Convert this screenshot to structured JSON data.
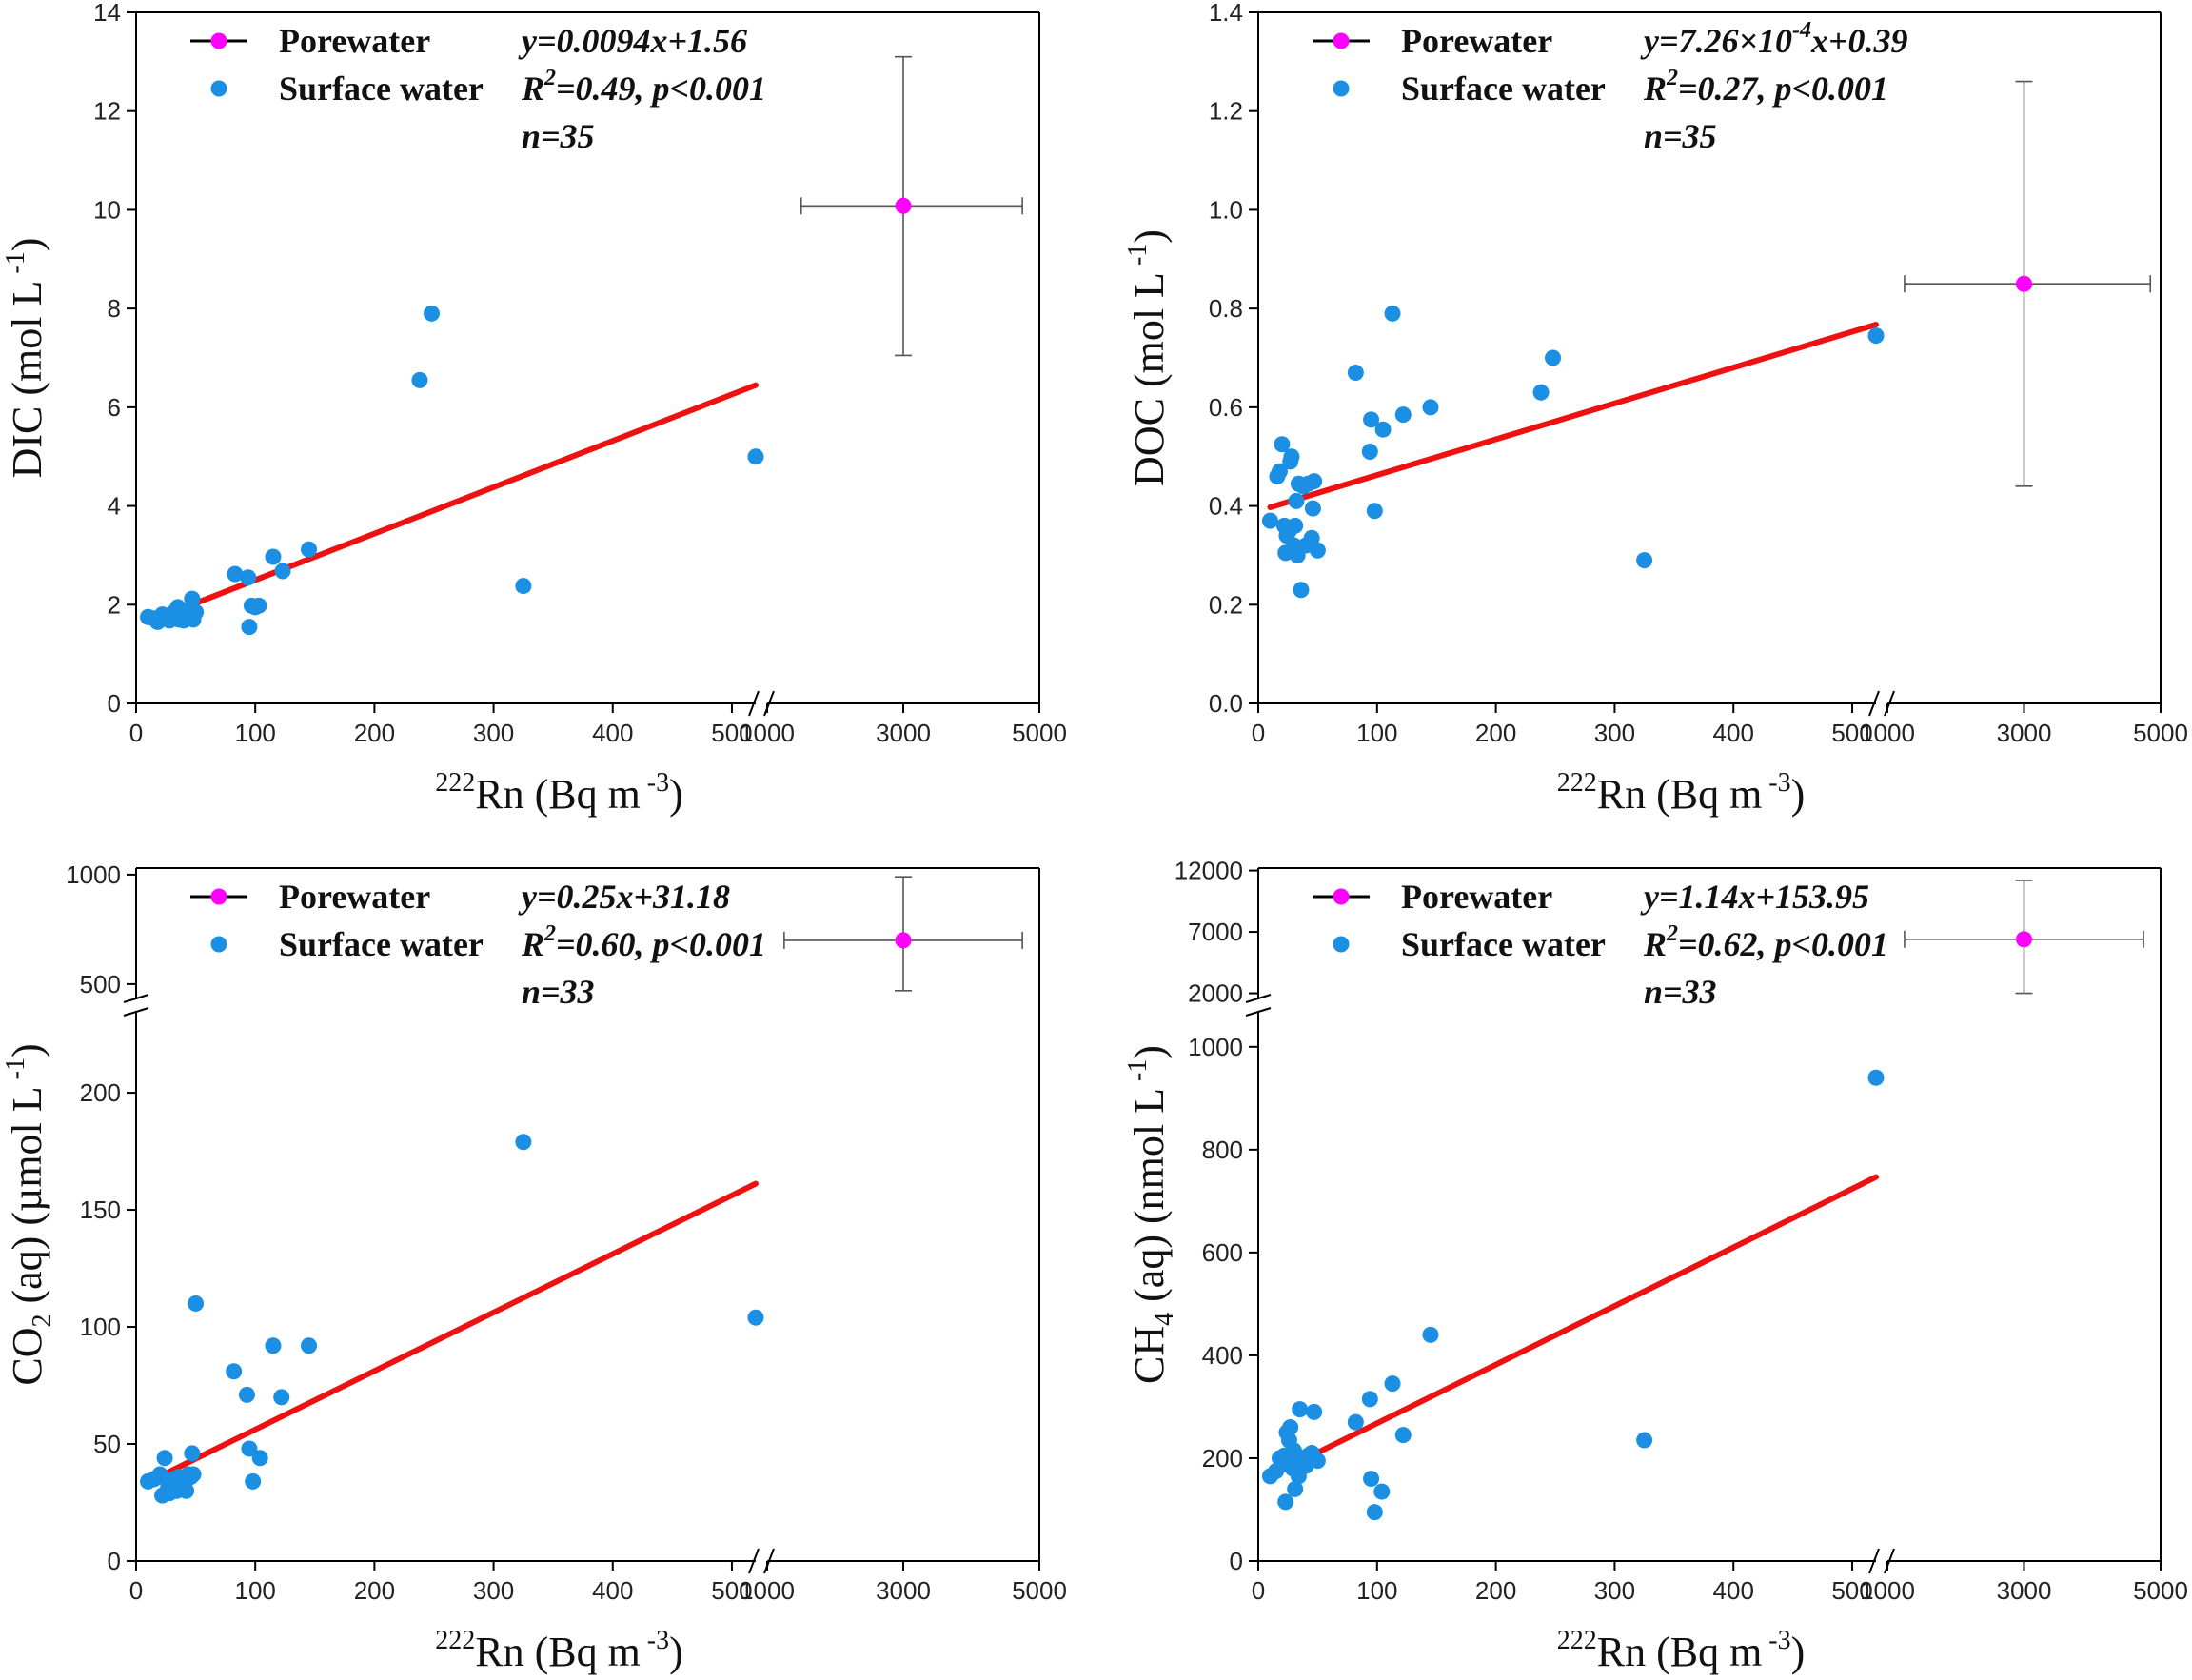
{
  "colors": {
    "surface": "#1a8fe3",
    "porewater": "#ff00ff",
    "fit": "#ee1111",
    "errorbar": "#555555"
  },
  "chart_data": [
    {
      "id": "dic",
      "type": "scatter",
      "ylabel": {
        "main": "DIC (mol L",
        "sup": "-1",
        "end": ")"
      },
      "xlabel": {
        "sup": "222",
        "main": "Rn (Bq m",
        "sup2": "-3",
        "end": ")"
      },
      "x_segments": [
        {
          "range": [
            0,
            520
          ],
          "ticks": [
            0,
            100,
            200,
            300,
            400,
            500
          ]
        },
        {
          "range": [
            1000,
            5000
          ],
          "ticks": [
            1000,
            3000,
            5000
          ]
        }
      ],
      "y_segments": [
        {
          "range": [
            0,
            14
          ],
          "ticks": [
            0,
            2,
            4,
            6,
            8,
            10,
            12,
            14
          ],
          "tick_labels": [
            "0",
            "2",
            "4",
            "6",
            "8",
            "10",
            "12",
            "14"
          ]
        }
      ],
      "legend": {
        "porewater": "Porewater",
        "surface": "Surface water"
      },
      "stats": {
        "eq": "y=0.0094x+1.56",
        "r2_pre": "R",
        "r2_sup": "2",
        "r2_post": "=0.49, p<0.001",
        "n": "n=35"
      },
      "fit": {
        "slope": 0.0094,
        "intercept": 1.56,
        "x_range": [
          10,
          520
        ]
      },
      "porewater": {
        "x": 3000,
        "y": 10.08,
        "x_err": [
          1500,
          4750
        ],
        "y_err": [
          7.05,
          13.1
        ]
      },
      "surface": [
        [
          10,
          1.75
        ],
        [
          15,
          1.72
        ],
        [
          18,
          1.65
        ],
        [
          20,
          1.7
        ],
        [
          22,
          1.8
        ],
        [
          25,
          1.75
        ],
        [
          28,
          1.68
        ],
        [
          30,
          1.72
        ],
        [
          32,
          1.85
        ],
        [
          35,
          1.95
        ],
        [
          36,
          1.7
        ],
        [
          38,
          1.78
        ],
        [
          40,
          1.68
        ],
        [
          42,
          1.82
        ],
        [
          44,
          1.75
        ],
        [
          45,
          1.9
        ],
        [
          47,
          2.12
        ],
        [
          48,
          1.7
        ],
        [
          50,
          1.85
        ],
        [
          83,
          2.62
        ],
        [
          94,
          2.55
        ],
        [
          95,
          1.55
        ],
        [
          97,
          1.98
        ],
        [
          100,
          1.95
        ],
        [
          103,
          1.98
        ],
        [
          115,
          2.97
        ],
        [
          123,
          2.68
        ],
        [
          145,
          3.12
        ],
        [
          238,
          6.55
        ],
        [
          248,
          7.9
        ],
        [
          325,
          2.38
        ],
        [
          520,
          5.0
        ],
        [
          26,
          1.78
        ],
        [
          34,
          1.74
        ],
        [
          39,
          1.86
        ]
      ]
    },
    {
      "id": "doc",
      "type": "scatter",
      "ylabel": {
        "main": "DOC (mol L",
        "sup": "-1",
        "end": ")"
      },
      "xlabel": {
        "sup": "222",
        "main": "Rn (Bq m",
        "sup2": "-3",
        "end": ")"
      },
      "x_segments": [
        {
          "range": [
            0,
            520
          ],
          "ticks": [
            0,
            100,
            200,
            300,
            400,
            500
          ]
        },
        {
          "range": [
            1000,
            5000
          ],
          "ticks": [
            1000,
            3000,
            5000
          ]
        }
      ],
      "y_segments": [
        {
          "range": [
            0,
            1.4
          ],
          "ticks": [
            0,
            0.2,
            0.4,
            0.6,
            0.8,
            1.0,
            1.2,
            1.4
          ],
          "tick_labels": [
            "0.0",
            "0.2",
            "0.4",
            "0.6",
            "0.8",
            "1.0",
            "1.2",
            "1.4"
          ]
        }
      ],
      "legend": {
        "porewater": "Porewater",
        "surface": "Surface water"
      },
      "stats": {
        "eq_pre": "y=7.26×10",
        "eq_sup": "-4",
        "eq_post": "x+0.39",
        "r2_pre": "R",
        "r2_sup": "2",
        "r2_post": "=0.27, p<0.001",
        "n": "n=35"
      },
      "fit": {
        "slope": 0.000726,
        "intercept": 0.39,
        "x_range": [
          10,
          520
        ]
      },
      "porewater": {
        "x": 3000,
        "y": 0.85,
        "x_err": [
          1250,
          4850
        ],
        "y_err": [
          0.44,
          1.26
        ]
      },
      "surface": [
        [
          10,
          0.37
        ],
        [
          16,
          0.46
        ],
        [
          18,
          0.47
        ],
        [
          20,
          0.525
        ],
        [
          22,
          0.36
        ],
        [
          23,
          0.305
        ],
        [
          24,
          0.34
        ],
        [
          26,
          0.35
        ],
        [
          27,
          0.49
        ],
        [
          28,
          0.5
        ],
        [
          30,
          0.32
        ],
        [
          31,
          0.36
        ],
        [
          32,
          0.41
        ],
        [
          33,
          0.3
        ],
        [
          34,
          0.445
        ],
        [
          36,
          0.23
        ],
        [
          38,
          0.44
        ],
        [
          40,
          0.32
        ],
        [
          42,
          0.445
        ],
        [
          45,
          0.335
        ],
        [
          46,
          0.395
        ],
        [
          47,
          0.45
        ],
        [
          50,
          0.31
        ],
        [
          82,
          0.67
        ],
        [
          94,
          0.51
        ],
        [
          95,
          0.575
        ],
        [
          98,
          0.39
        ],
        [
          105,
          0.555
        ],
        [
          113,
          0.79
        ],
        [
          122,
          0.585
        ],
        [
          145,
          0.6
        ],
        [
          238,
          0.63
        ],
        [
          248,
          0.7
        ],
        [
          325,
          0.29
        ],
        [
          520,
          0.745
        ]
      ]
    },
    {
      "id": "co2",
      "type": "scatter",
      "ylabel": {
        "main": "CO",
        "sub": "2",
        "mid": " (aq) (µmol L",
        "sup": "-1",
        "end": ")"
      },
      "xlabel": {
        "sup": "222",
        "main": "Rn (Bq m",
        "sup2": "-3",
        "end": ")"
      },
      "x_segments": [
        {
          "range": [
            0,
            520
          ],
          "ticks": [
            0,
            100,
            200,
            300,
            400,
            500
          ]
        },
        {
          "range": [
            1000,
            5000
          ],
          "ticks": [
            1000,
            3000,
            5000
          ]
        }
      ],
      "y_segments": [
        {
          "range": [
            0,
            235
          ],
          "ticks": [
            0,
            50,
            100,
            150,
            200
          ],
          "tick_labels": [
            "0",
            "50",
            "100",
            "150",
            "200"
          ]
        },
        {
          "range": [
            430,
            1030
          ],
          "ticks": [
            500,
            1000
          ],
          "tick_labels": [
            "500",
            "1000"
          ]
        }
      ],
      "legend": {
        "porewater": "Porewater",
        "surface": "Surface water"
      },
      "stats": {
        "eq": "y=0.25x+31.18",
        "r2_pre": "R",
        "r2_sup": "2",
        "r2_post": "=0.60, p<0.001",
        "n": "n=33"
      },
      "fit": {
        "slope": 0.25,
        "intercept": 31.18,
        "x_range": [
          10,
          520
        ]
      },
      "porewater": {
        "x": 3000,
        "y": 700,
        "x_err": [
          1250,
          4750
        ],
        "y_err": [
          470,
          990
        ]
      },
      "surface": [
        [
          10,
          34
        ],
        [
          15,
          35
        ],
        [
          20,
          37
        ],
        [
          22,
          28
        ],
        [
          24,
          44
        ],
        [
          26,
          30
        ],
        [
          28,
          29
        ],
        [
          30,
          32
        ],
        [
          32,
          35
        ],
        [
          34,
          30
        ],
        [
          36,
          36
        ],
        [
          38,
          31
        ],
        [
          40,
          33
        ],
        [
          42,
          30
        ],
        [
          44,
          37
        ],
        [
          46,
          36
        ],
        [
          47,
          46
        ],
        [
          48,
          37
        ],
        [
          50,
          110
        ],
        [
          82,
          81
        ],
        [
          93,
          71
        ],
        [
          95,
          48
        ],
        [
          98,
          34
        ],
        [
          104,
          44
        ],
        [
          115,
          92
        ],
        [
          122,
          70
        ],
        [
          145,
          92
        ],
        [
          325,
          179
        ],
        [
          520,
          104
        ],
        [
          27,
          33
        ],
        [
          33,
          31
        ],
        [
          39,
          34
        ],
        [
          43,
          35
        ]
      ]
    },
    {
      "id": "ch4",
      "type": "scatter",
      "ylabel": {
        "main": "CH",
        "sub": "4",
        "mid": " (aq) (nmol L",
        "sup": "-1",
        "end": ")"
      },
      "xlabel": {
        "sup": "222",
        "main": "Rn (Bq m",
        "sup2": "-3",
        "end": ")"
      },
      "x_segments": [
        {
          "range": [
            0,
            520
          ],
          "ticks": [
            0,
            100,
            200,
            300,
            400,
            500
          ]
        },
        {
          "range": [
            1000,
            5000
          ],
          "ticks": [
            1000,
            3000,
            5000
          ]
        }
      ],
      "y_segments": [
        {
          "range": [
            0,
            1070
          ],
          "ticks": [
            0,
            200,
            400,
            600,
            800,
            1000
          ],
          "tick_labels": [
            "0",
            "200",
            "400",
            "600",
            "800",
            "1000"
          ]
        },
        {
          "range": [
            1500,
            12200
          ],
          "ticks": [
            2000,
            7000,
            12000
          ],
          "tick_labels": [
            "2000",
            "7000",
            "12000"
          ]
        }
      ],
      "legend": {
        "porewater": "Porewater",
        "surface": "Surface water"
      },
      "stats": {
        "eq": "y=1.14x+153.95",
        "r2_pre": "R",
        "r2_sup": "2",
        "r2_post": "=0.62, p<0.001",
        "n": "n=33"
      },
      "fit": {
        "slope": 1.14,
        "intercept": 153.95,
        "x_range": [
          10,
          520
        ]
      },
      "porewater": {
        "x": 3000,
        "y": 6400,
        "x_err": [
          1250,
          4750
        ],
        "y_err": [
          2000,
          11200
        ]
      },
      "surface": [
        [
          10,
          165
        ],
        [
          15,
          175
        ],
        [
          18,
          200
        ],
        [
          20,
          190
        ],
        [
          22,
          205
        ],
        [
          23,
          115
        ],
        [
          24,
          250
        ],
        [
          26,
          235
        ],
        [
          27,
          260
        ],
        [
          28,
          185
        ],
        [
          30,
          215
        ],
        [
          31,
          140
        ],
        [
          32,
          190
        ],
        [
          34,
          165
        ],
        [
          35,
          295
        ],
        [
          38,
          200
        ],
        [
          40,
          185
        ],
        [
          45,
          210
        ],
        [
          47,
          290
        ],
        [
          50,
          195
        ],
        [
          82,
          270
        ],
        [
          94,
          315
        ],
        [
          95,
          160
        ],
        [
          98,
          95
        ],
        [
          104,
          135
        ],
        [
          113,
          345
        ],
        [
          122,
          245
        ],
        [
          145,
          440
        ],
        [
          325,
          235
        ],
        [
          520,
          940
        ],
        [
          29,
          180
        ],
        [
          36,
          195
        ],
        [
          42,
          205
        ]
      ]
    }
  ]
}
